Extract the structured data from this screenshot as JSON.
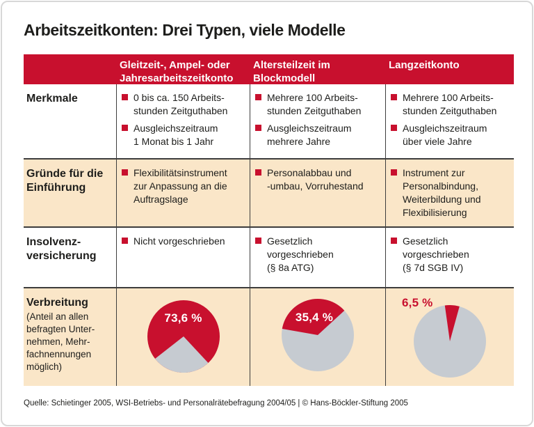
{
  "title": "Arbeitszeitkonten: Drei Typen, viele Modelle",
  "colors": {
    "red": "#c8102e",
    "gray": "#c6cbd1",
    "beige": "#fae6c8",
    "line": "#3c3c3c"
  },
  "table": {
    "columns": [
      {
        "label": "Gleitzeit-, Ampel- oder\nJahresarbeitszeitkonto"
      },
      {
        "label": "Altersteilzeit im\nBlockmodell"
      },
      {
        "label": "Langzeitkonto"
      }
    ],
    "rows": [
      {
        "label": "Merkmale",
        "cells": [
          [
            "0 bis ca. 150 Arbeits-\nstunden Zeitguthaben",
            "Ausgleichszeitraum\n1 Monat bis 1 Jahr"
          ],
          [
            "Mehrere 100 Arbeits-\nstunden Zeitguthaben",
            "Ausgleichszeitraum\nmehrere Jahre"
          ],
          [
            "Mehrere 100 Arbeits-\nstunden Zeitguthaben",
            "Ausgleichszeitraum\nüber viele Jahre"
          ]
        ]
      },
      {
        "label": "Gründe für die\nEinführung",
        "cells": [
          [
            "Flexibilitätsinstrument\nzur Anpassung an die\nAuftragslage"
          ],
          [
            "Personalabbau und\n-umbau, Vorruhestand"
          ],
          [
            "Instrument zur\nPersonalbindung,\nWeiterbildung und\nFlexibilisierung"
          ]
        ]
      },
      {
        "label": "Insolvenz-\nversicherung",
        "cells": [
          [
            "Nicht vorgeschrieben"
          ],
          [
            "Gesetzlich\nvorgeschrieben\n(§ 8a ATG)"
          ],
          [
            "Gesetzlich\nvorgeschrieben\n(§ 7d SGB IV)"
          ]
        ]
      },
      {
        "label": "Verbreitung",
        "sublabel": "(Anteil an allen\nbefragten Unter-\nnehmen, Mehr-\nfachnennungen\nmöglich)"
      }
    ]
  },
  "chart_data": {
    "type": "pie",
    "title": "Verbreitung (Anteil an allen befragten Unternehmen, Mehrfachnennungen möglich)",
    "categories": [
      "Gleitzeit-, Ampel- oder Jahresarbeitszeitkonto",
      "Altersteilzeit im Blockmodell",
      "Langzeitkonto"
    ],
    "values": [
      73.6,
      35.4,
      6.5
    ],
    "pies": [
      {
        "value": 73.6,
        "label": "73,6 %",
        "base_color": "red",
        "wedge_color": "gray",
        "wedge_share": 26.4,
        "wedge_start_deg": 137
      },
      {
        "value": 35.4,
        "label": "35,4 %",
        "base_color": "gray",
        "wedge_color": "red",
        "wedge_share": 35.4,
        "wedge_start_deg": -80
      },
      {
        "value": 6.5,
        "label": "6,5 %",
        "base_color": "gray",
        "wedge_color": "red",
        "wedge_share": 6.5,
        "wedge_start_deg": -8
      }
    ]
  },
  "source": "Quelle: Schietinger 2005, WSI-Betriebs- und Personalrätebefragung 2004/05 | © Hans-Böckler-Stiftung 2005"
}
